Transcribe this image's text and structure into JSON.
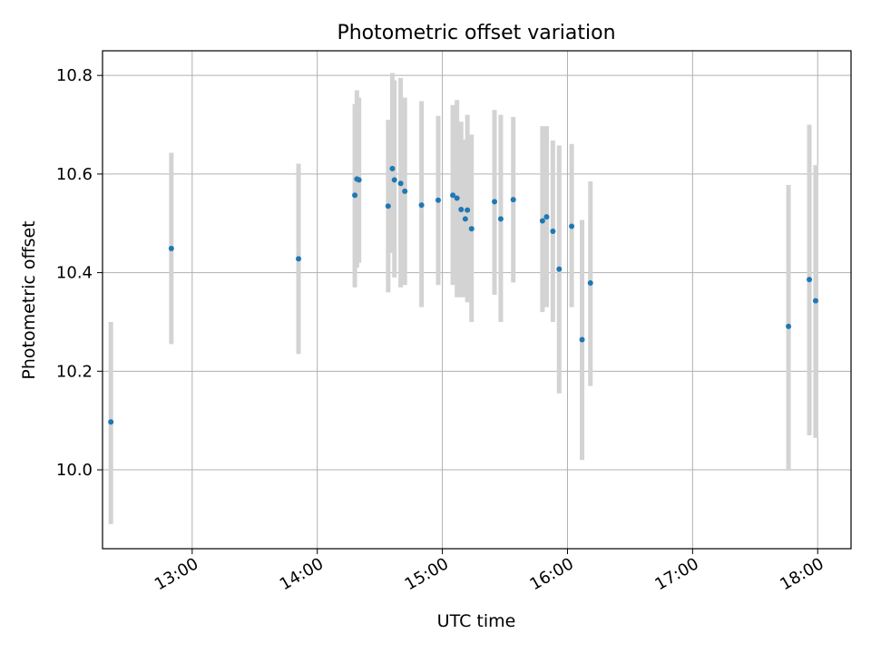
{
  "chart_data": {
    "type": "scatter",
    "title": "Photometric offset variation",
    "xlabel": "UTC time",
    "ylabel": "Photometric offset",
    "x_unit": "hours UTC",
    "xlim": [
      "12:17",
      "18:16"
    ],
    "ylim": [
      9.84,
      10.85
    ],
    "x_ticks": [
      {
        "value": "13:00",
        "label": "13:00"
      },
      {
        "value": "14:00",
        "label": "14:00"
      },
      {
        "value": "15:00",
        "label": "15:00"
      },
      {
        "value": "16:00",
        "label": "16:00"
      },
      {
        "value": "17:00",
        "label": "17:00"
      },
      {
        "value": "18:00",
        "label": "18:00"
      }
    ],
    "y_ticks": [
      {
        "value": 10.0,
        "label": "10.0"
      },
      {
        "value": 10.2,
        "label": "10.2"
      },
      {
        "value": 10.4,
        "label": "10.4"
      },
      {
        "value": 10.6,
        "label": "10.6"
      },
      {
        "value": 10.8,
        "label": "10.8"
      }
    ],
    "grid": true,
    "legend": "none",
    "colors": {
      "point": "#1f77b4",
      "errorbar": "#d3d3d3",
      "grid": "#b0b0b0"
    },
    "points": [
      {
        "x": "12:21",
        "y": 10.097,
        "ylow": 9.89,
        "yhigh": 10.3
      },
      {
        "x": "12:50",
        "y": 10.449,
        "ylow": 10.255,
        "yhigh": 10.643
      },
      {
        "x": "13:51",
        "y": 10.428,
        "ylow": 10.235,
        "yhigh": 10.621
      },
      {
        "x": "14:18",
        "y": 10.557,
        "ylow": 10.37,
        "yhigh": 10.742
      },
      {
        "x": "14:19",
        "y": 10.59,
        "ylow": 10.41,
        "yhigh": 10.77
      },
      {
        "x": "14:20",
        "y": 10.588,
        "ylow": 10.42,
        "yhigh": 10.755
      },
      {
        "x": "14:34",
        "y": 10.535,
        "ylow": 10.36,
        "yhigh": 10.71
      },
      {
        "x": "14:36",
        "y": 10.611,
        "ylow": 10.44,
        "yhigh": 10.805
      },
      {
        "x": "14:37",
        "y": 10.588,
        "ylow": 10.39,
        "yhigh": 10.79
      },
      {
        "x": "14:40",
        "y": 10.581,
        "ylow": 10.37,
        "yhigh": 10.795
      },
      {
        "x": "14:42",
        "y": 10.565,
        "ylow": 10.375,
        "yhigh": 10.755
      },
      {
        "x": "14:50",
        "y": 10.537,
        "ylow": 10.33,
        "yhigh": 10.748
      },
      {
        "x": "14:58",
        "y": 10.547,
        "ylow": 10.375,
        "yhigh": 10.718
      },
      {
        "x": "15:05",
        "y": 10.557,
        "ylow": 10.375,
        "yhigh": 10.74
      },
      {
        "x": "15:07",
        "y": 10.551,
        "ylow": 10.35,
        "yhigh": 10.75
      },
      {
        "x": "15:09",
        "y": 10.528,
        "ylow": 10.35,
        "yhigh": 10.706
      },
      {
        "x": "15:11",
        "y": 10.509,
        "ylow": 10.35,
        "yhigh": 10.67
      },
      {
        "x": "15:12",
        "y": 10.527,
        "ylow": 10.34,
        "yhigh": 10.72
      },
      {
        "x": "15:14",
        "y": 10.489,
        "ylow": 10.3,
        "yhigh": 10.68
      },
      {
        "x": "15:25",
        "y": 10.544,
        "ylow": 10.355,
        "yhigh": 10.73
      },
      {
        "x": "15:28",
        "y": 10.509,
        "ylow": 10.3,
        "yhigh": 10.72
      },
      {
        "x": "15:34",
        "y": 10.548,
        "ylow": 10.38,
        "yhigh": 10.716
      },
      {
        "x": "15:48",
        "y": 10.505,
        "ylow": 10.32,
        "yhigh": 10.697
      },
      {
        "x": "15:50",
        "y": 10.513,
        "ylow": 10.33,
        "yhigh": 10.697
      },
      {
        "x": "15:53",
        "y": 10.484,
        "ylow": 10.3,
        "yhigh": 10.668
      },
      {
        "x": "15:56",
        "y": 10.407,
        "ylow": 10.155,
        "yhigh": 10.658
      },
      {
        "x": "16:02",
        "y": 10.494,
        "ylow": 10.33,
        "yhigh": 10.661
      },
      {
        "x": "16:07",
        "y": 10.264,
        "ylow": 10.02,
        "yhigh": 10.507
      },
      {
        "x": "16:11",
        "y": 10.379,
        "ylow": 10.17,
        "yhigh": 10.585
      },
      {
        "x": "17:46",
        "y": 10.291,
        "ylow": 10.0,
        "yhigh": 10.578
      },
      {
        "x": "17:56",
        "y": 10.386,
        "ylow": 10.07,
        "yhigh": 10.7
      },
      {
        "x": "17:59",
        "y": 10.343,
        "ylow": 10.065,
        "yhigh": 10.618
      }
    ]
  }
}
